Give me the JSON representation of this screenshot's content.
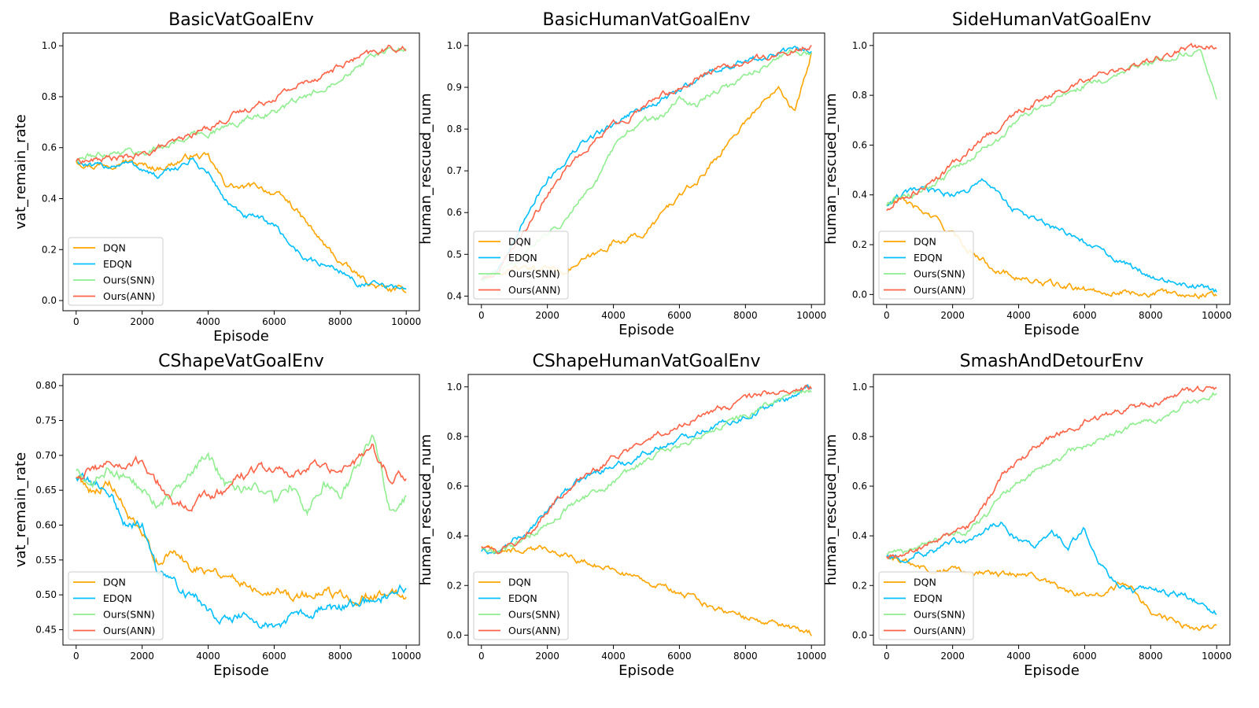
{
  "colors": {
    "DQN": "#ffa500",
    "EDQN": "#00bfff",
    "Ours(SNN)": "#90ee90",
    "Ours(ANN)": "#ff6347",
    "axes": "#000000",
    "background": "#ffffff"
  },
  "chart_data": [
    {
      "type": "line",
      "title": "BasicVatGoalEnv",
      "xlabel": "Episode",
      "ylabel": "vat_remain_rate",
      "xlim": [
        -400,
        10400
      ],
      "ylim": [
        -0.04,
        1.05
      ],
      "xticks": [
        0,
        2000,
        4000,
        6000,
        8000,
        10000
      ],
      "yticks": [
        0.0,
        0.2,
        0.4,
        0.6,
        0.8,
        1.0
      ],
      "ytick_labels": [
        "0.0",
        "0.2",
        "0.4",
        "0.6",
        "0.8",
        "1.0"
      ],
      "legend": "lower-left",
      "x": [
        0,
        500,
        1000,
        1500,
        2000,
        2500,
        3000,
        3500,
        4000,
        4500,
        5000,
        5500,
        6000,
        6500,
        7000,
        7500,
        8000,
        8500,
        9000,
        9500,
        10000
      ],
      "series": [
        {
          "name": "DQN",
          "values": [
            0.55,
            0.53,
            0.54,
            0.55,
            0.53,
            0.52,
            0.54,
            0.57,
            0.56,
            0.46,
            0.44,
            0.45,
            0.42,
            0.38,
            0.3,
            0.22,
            0.15,
            0.1,
            0.06,
            0.04,
            0.04
          ]
        },
        {
          "name": "EDQN",
          "values": [
            0.55,
            0.52,
            0.53,
            0.54,
            0.52,
            0.48,
            0.52,
            0.55,
            0.5,
            0.4,
            0.33,
            0.32,
            0.3,
            0.22,
            0.16,
            0.14,
            0.12,
            0.07,
            0.06,
            0.05,
            0.05
          ]
        },
        {
          "name": "Ours(SNN)",
          "values": [
            0.55,
            0.57,
            0.58,
            0.59,
            0.58,
            0.6,
            0.62,
            0.65,
            0.66,
            0.68,
            0.7,
            0.73,
            0.74,
            0.77,
            0.8,
            0.84,
            0.88,
            0.92,
            0.96,
            0.98,
            0.99
          ]
        },
        {
          "name": "Ours(ANN)",
          "values": [
            0.55,
            0.55,
            0.56,
            0.56,
            0.57,
            0.6,
            0.62,
            0.65,
            0.68,
            0.71,
            0.74,
            0.77,
            0.8,
            0.83,
            0.86,
            0.89,
            0.92,
            0.95,
            0.97,
            0.99,
            0.99
          ]
        }
      ]
    },
    {
      "type": "line",
      "title": "BasicHumanVatGoalEnv",
      "xlabel": "Episode",
      "ylabel": "human_rescued_num",
      "xlim": [
        -400,
        10400
      ],
      "ylim": [
        0.38,
        1.03
      ],
      "xticks": [
        0,
        2000,
        4000,
        6000,
        8000,
        10000
      ],
      "yticks": [
        0.4,
        0.5,
        0.6,
        0.7,
        0.8,
        0.9,
        1.0
      ],
      "ytick_labels": [
        "0.4",
        "0.5",
        "0.6",
        "0.7",
        "0.8",
        "0.9",
        "1.0"
      ],
      "legend": "lower-left",
      "x": [
        0,
        500,
        1000,
        1500,
        2000,
        2500,
        3000,
        3500,
        4000,
        4500,
        5000,
        5500,
        6000,
        6500,
        7000,
        7500,
        8000,
        8500,
        9000,
        9500,
        10000
      ],
      "series": [
        {
          "name": "DQN",
          "values": [
            0.44,
            0.45,
            0.47,
            0.46,
            0.47,
            0.46,
            0.48,
            0.5,
            0.53,
            0.54,
            0.55,
            0.6,
            0.64,
            0.67,
            0.72,
            0.77,
            0.82,
            0.86,
            0.91,
            0.84,
            0.98
          ]
        },
        {
          "name": "EDQN",
          "values": [
            0.44,
            0.47,
            0.52,
            0.62,
            0.68,
            0.72,
            0.76,
            0.79,
            0.81,
            0.84,
            0.85,
            0.87,
            0.89,
            0.92,
            0.94,
            0.95,
            0.96,
            0.97,
            0.98,
            0.99,
            0.99
          ]
        },
        {
          "name": "Ours(SNN)",
          "values": [
            0.44,
            0.46,
            0.48,
            0.52,
            0.55,
            0.58,
            0.64,
            0.68,
            0.75,
            0.8,
            0.82,
            0.83,
            0.87,
            0.86,
            0.89,
            0.9,
            0.93,
            0.95,
            0.97,
            0.99,
            0.98
          ]
        },
        {
          "name": "Ours(ANN)",
          "values": [
            0.44,
            0.46,
            0.52,
            0.58,
            0.64,
            0.7,
            0.74,
            0.78,
            0.81,
            0.83,
            0.86,
            0.88,
            0.9,
            0.92,
            0.94,
            0.95,
            0.96,
            0.97,
            0.98,
            0.99,
            1.0
          ]
        }
      ]
    },
    {
      "type": "line",
      "title": "SideHumanVatGoalEnv",
      "xlabel": "Episode",
      "ylabel": "human_rescued_num",
      "xlim": [
        -400,
        10400
      ],
      "ylim": [
        -0.04,
        1.05
      ],
      "xticks": [
        0,
        2000,
        4000,
        6000,
        8000,
        10000
      ],
      "yticks": [
        0.0,
        0.2,
        0.4,
        0.6,
        0.8,
        1.0
      ],
      "ytick_labels": [
        "0.0",
        "0.2",
        "0.4",
        "0.6",
        "0.8",
        "1.0"
      ],
      "legend": "lower-left",
      "x": [
        0,
        500,
        1000,
        1500,
        2000,
        2500,
        3000,
        3500,
        4000,
        4500,
        5000,
        5500,
        6000,
        6500,
        7000,
        7500,
        8000,
        8500,
        9000,
        9500,
        10000
      ],
      "series": [
        {
          "name": "DQN",
          "values": [
            0.36,
            0.38,
            0.34,
            0.3,
            0.24,
            0.18,
            0.13,
            0.09,
            0.07,
            0.05,
            0.04,
            0.03,
            0.02,
            0.015,
            0.01,
            0.008,
            0.005,
            0.003,
            0.002,
            0.002,
            0.002
          ]
        },
        {
          "name": "EDQN",
          "values": [
            0.36,
            0.4,
            0.42,
            0.41,
            0.4,
            0.42,
            0.46,
            0.38,
            0.33,
            0.3,
            0.27,
            0.24,
            0.21,
            0.17,
            0.14,
            0.1,
            0.08,
            0.06,
            0.04,
            0.03,
            0.01
          ]
        },
        {
          "name": "Ours(SNN)",
          "values": [
            0.36,
            0.4,
            0.41,
            0.44,
            0.5,
            0.55,
            0.6,
            0.64,
            0.7,
            0.74,
            0.78,
            0.8,
            0.84,
            0.86,
            0.89,
            0.91,
            0.93,
            0.95,
            0.97,
            0.98,
            0.8
          ]
        },
        {
          "name": "Ours(ANN)",
          "values": [
            0.34,
            0.4,
            0.42,
            0.46,
            0.52,
            0.58,
            0.64,
            0.68,
            0.74,
            0.77,
            0.8,
            0.83,
            0.86,
            0.88,
            0.9,
            0.92,
            0.94,
            0.96,
            0.98,
            0.99,
            1.0
          ]
        }
      ]
    },
    {
      "type": "line",
      "title": "CShapeVatGoalEnv",
      "xlabel": "Episode",
      "ylabel": "vat_remain_rate",
      "xlim": [
        -400,
        10400
      ],
      "ylim": [
        0.428,
        0.816
      ],
      "xticks": [
        0,
        2000,
        4000,
        6000,
        8000,
        10000
      ],
      "yticks": [
        0.45,
        0.5,
        0.55,
        0.6,
        0.65,
        0.7,
        0.75,
        0.8
      ],
      "ytick_labels": [
        "0.45",
        "0.50",
        "0.55",
        "0.60",
        "0.65",
        "0.70",
        "0.75",
        "0.80"
      ],
      "legend": "lower-left",
      "x": [
        0,
        500,
        1000,
        1500,
        2000,
        2500,
        3000,
        3500,
        4000,
        4500,
        5000,
        5500,
        6000,
        6500,
        7000,
        7500,
        8000,
        8500,
        9000,
        9500,
        10000
      ],
      "series": [
        {
          "name": "DQN",
          "values": [
            0.67,
            0.65,
            0.66,
            0.62,
            0.58,
            0.55,
            0.56,
            0.54,
            0.54,
            0.53,
            0.52,
            0.51,
            0.51,
            0.5,
            0.5,
            0.5,
            0.5,
            0.5,
            0.5,
            0.5,
            0.5
          ]
        },
        {
          "name": "EDQN",
          "values": [
            0.67,
            0.66,
            0.65,
            0.6,
            0.6,
            0.53,
            0.52,
            0.5,
            0.48,
            0.47,
            0.47,
            0.46,
            0.45,
            0.47,
            0.47,
            0.48,
            0.48,
            0.49,
            0.49,
            0.5,
            0.51
          ]
        },
        {
          "name": "Ours(SNN)",
          "values": [
            0.68,
            0.66,
            0.68,
            0.67,
            0.65,
            0.63,
            0.65,
            0.67,
            0.7,
            0.66,
            0.65,
            0.66,
            0.63,
            0.66,
            0.62,
            0.66,
            0.64,
            0.68,
            0.73,
            0.62,
            0.64
          ]
        },
        {
          "name": "Ours(ANN)",
          "values": [
            0.67,
            0.68,
            0.69,
            0.68,
            0.69,
            0.66,
            0.63,
            0.63,
            0.64,
            0.65,
            0.67,
            0.68,
            0.68,
            0.67,
            0.68,
            0.69,
            0.68,
            0.69,
            0.71,
            0.67,
            0.67
          ]
        }
      ]
    },
    {
      "type": "line",
      "title": "CShapeHumanVatGoalEnv",
      "xlabel": "Episode",
      "ylabel": "human_rescued_num",
      "xlim": [
        -400,
        10400
      ],
      "ylim": [
        -0.04,
        1.05
      ],
      "xticks": [
        0,
        2000,
        4000,
        6000,
        8000,
        10000
      ],
      "yticks": [
        0.0,
        0.2,
        0.4,
        0.6,
        0.8,
        1.0
      ],
      "ytick_labels": [
        "0.0",
        "0.2",
        "0.4",
        "0.6",
        "0.8",
        "1.0"
      ],
      "legend": "lower-left",
      "x": [
        0,
        500,
        1000,
        1500,
        2000,
        2500,
        3000,
        3500,
        4000,
        4500,
        5000,
        5500,
        6000,
        6500,
        7000,
        7500,
        8000,
        8500,
        9000,
        9500,
        10000
      ],
      "series": [
        {
          "name": "DQN",
          "values": [
            0.36,
            0.34,
            0.34,
            0.34,
            0.35,
            0.33,
            0.3,
            0.28,
            0.27,
            0.24,
            0.22,
            0.19,
            0.17,
            0.14,
            0.12,
            0.1,
            0.07,
            0.06,
            0.04,
            0.02,
            0.005
          ]
        },
        {
          "name": "EDQN",
          "values": [
            0.34,
            0.33,
            0.38,
            0.42,
            0.5,
            0.58,
            0.62,
            0.66,
            0.68,
            0.7,
            0.74,
            0.76,
            0.79,
            0.82,
            0.84,
            0.86,
            0.88,
            0.91,
            0.94,
            0.97,
            1.0
          ]
        },
        {
          "name": "Ours(SNN)",
          "values": [
            0.35,
            0.34,
            0.36,
            0.4,
            0.45,
            0.5,
            0.54,
            0.58,
            0.62,
            0.66,
            0.7,
            0.74,
            0.76,
            0.8,
            0.82,
            0.86,
            0.88,
            0.92,
            0.95,
            0.97,
            0.99
          ]
        },
        {
          "name": "Ours(ANN)",
          "values": [
            0.36,
            0.34,
            0.37,
            0.42,
            0.5,
            0.58,
            0.63,
            0.67,
            0.71,
            0.75,
            0.79,
            0.82,
            0.85,
            0.88,
            0.9,
            0.92,
            0.95,
            0.97,
            0.98,
            0.99,
            1.0
          ]
        }
      ]
    },
    {
      "type": "line",
      "title": "SmashAndDetourEnv",
      "xlabel": "Episode",
      "ylabel": "human_rescued_num",
      "xlim": [
        -400,
        10400
      ],
      "ylim": [
        -0.04,
        1.05
      ],
      "xticks": [
        0,
        2000,
        4000,
        6000,
        8000,
        10000
      ],
      "yticks": [
        0.0,
        0.2,
        0.4,
        0.6,
        0.8,
        1.0
      ],
      "ytick_labels": [
        "0.0",
        "0.2",
        "0.4",
        "0.6",
        "0.8",
        "1.0"
      ],
      "legend": "lower-left",
      "x": [
        0,
        500,
        1000,
        1500,
        2000,
        2500,
        3000,
        3500,
        4000,
        4500,
        5000,
        5500,
        6000,
        6500,
        7000,
        7500,
        8000,
        8500,
        9000,
        9500,
        10000
      ],
      "series": [
        {
          "name": "DQN",
          "values": [
            0.32,
            0.3,
            0.28,
            0.26,
            0.27,
            0.26,
            0.25,
            0.24,
            0.25,
            0.24,
            0.2,
            0.17,
            0.16,
            0.16,
            0.2,
            0.18,
            0.1,
            0.06,
            0.04,
            0.02,
            0.03
          ]
        },
        {
          "name": "EDQN",
          "values": [
            0.32,
            0.3,
            0.33,
            0.34,
            0.37,
            0.38,
            0.42,
            0.45,
            0.38,
            0.35,
            0.42,
            0.36,
            0.43,
            0.28,
            0.2,
            0.18,
            0.2,
            0.17,
            0.16,
            0.13,
            0.09
          ]
        },
        {
          "name": "Ours(SNN)",
          "values": [
            0.33,
            0.33,
            0.36,
            0.38,
            0.4,
            0.42,
            0.48,
            0.56,
            0.62,
            0.66,
            0.7,
            0.74,
            0.76,
            0.8,
            0.82,
            0.85,
            0.86,
            0.88,
            0.93,
            0.95,
            0.98
          ]
        },
        {
          "name": "Ours(ANN)",
          "values": [
            0.32,
            0.32,
            0.35,
            0.38,
            0.4,
            0.44,
            0.52,
            0.64,
            0.7,
            0.76,
            0.8,
            0.83,
            0.86,
            0.88,
            0.9,
            0.92,
            0.93,
            0.95,
            0.98,
            0.99,
            1.0
          ]
        }
      ]
    }
  ]
}
